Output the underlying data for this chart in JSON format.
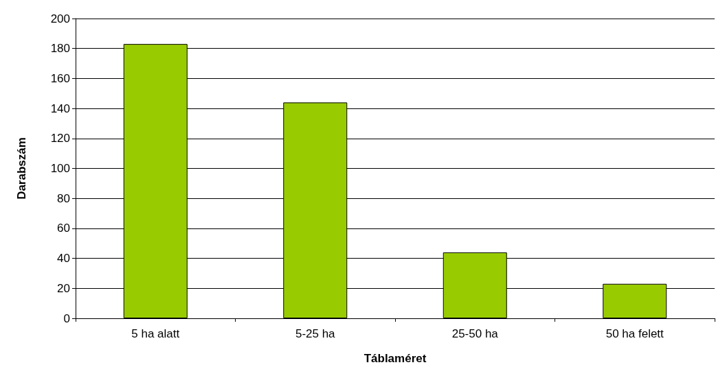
{
  "chart_data": {
    "type": "bar",
    "xlabel": "Táblaméret",
    "ylabel": "Darabszám",
    "categories": [
      "5 ha alatt",
      "5-25 ha",
      "25-50 ha",
      "50 ha felett"
    ],
    "values": [
      183,
      144,
      44,
      23
    ],
    "color": "#99cc00",
    "ylim": [
      0,
      200
    ],
    "yticks": [
      0,
      20,
      40,
      60,
      80,
      100,
      120,
      140,
      160,
      180,
      200
    ],
    "grid": "y"
  }
}
